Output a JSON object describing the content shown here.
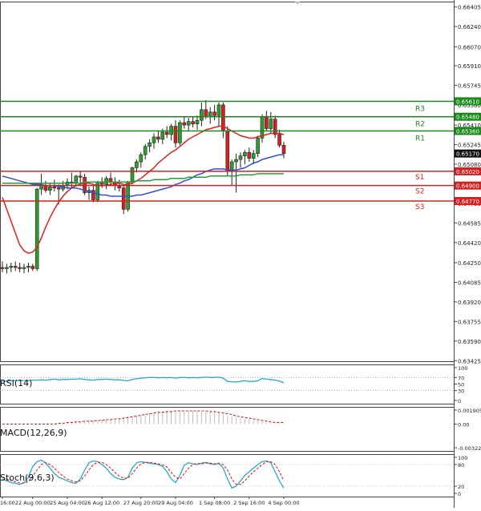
{
  "chart_data": {
    "type": "candlestick",
    "instrument_note": "Forex chart with support/resistance levels and indicators",
    "price_axis": {
      "ylim": [
        0.6342,
        0.6645
      ],
      "ticks": [
        "0.66405",
        "0.66240",
        "0.66070",
        "0.65910",
        "0.65745",
        "0.65580",
        "0.65410",
        "0.65245",
        "0.65080",
        "0.64915",
        "0.64750",
        "0.64585",
        "0.64420",
        "0.64250",
        "0.64085",
        "0.63920",
        "0.63755",
        "0.63590",
        "0.63425"
      ]
    },
    "levels": [
      {
        "name": "R3",
        "label": "0.65610",
        "value": 0.6561,
        "color": "#1a8a1a"
      },
      {
        "name": "R2",
        "label": "0.65480",
        "value": 0.6548,
        "color": "#1a8a1a"
      },
      {
        "name": "R1",
        "label": "0.65360",
        "value": 0.6536,
        "color": "#1a8a1a"
      },
      {
        "name": "S1",
        "label": "0.65020",
        "value": 0.6502,
        "color": "#d42020"
      },
      {
        "name": "S2",
        "label": "0.64900",
        "value": 0.649,
        "color": "#d42020"
      },
      {
        "name": "S3",
        "label": "0.64770",
        "value": 0.6477,
        "color": "#d42020"
      }
    ],
    "current_price": {
      "label": "0.65170",
      "value": 0.6517
    },
    "candles": [
      {
        "o": 0.6421,
        "h": 0.6426,
        "l": 0.6417,
        "c": 0.642
      },
      {
        "o": 0.642,
        "h": 0.6424,
        "l": 0.6416,
        "c": 0.6421
      },
      {
        "o": 0.6421,
        "h": 0.6425,
        "l": 0.6417,
        "c": 0.6422
      },
      {
        "o": 0.6422,
        "h": 0.6426,
        "l": 0.6418,
        "c": 0.6421
      },
      {
        "o": 0.6421,
        "h": 0.6425,
        "l": 0.6417,
        "c": 0.642
      },
      {
        "o": 0.642,
        "h": 0.6424,
        "l": 0.6416,
        "c": 0.6421
      },
      {
        "o": 0.6421,
        "h": 0.6425,
        "l": 0.6417,
        "c": 0.6422
      },
      {
        "o": 0.6422,
        "h": 0.6424,
        "l": 0.6418,
        "c": 0.642
      },
      {
        "o": 0.642,
        "h": 0.6488,
        "l": 0.6418,
        "c": 0.6487
      },
      {
        "o": 0.6487,
        "h": 0.65,
        "l": 0.6482,
        "c": 0.649
      },
      {
        "o": 0.649,
        "h": 0.6494,
        "l": 0.6484,
        "c": 0.6486
      },
      {
        "o": 0.6486,
        "h": 0.6492,
        "l": 0.6482,
        "c": 0.6489
      },
      {
        "o": 0.6489,
        "h": 0.6495,
        "l": 0.6485,
        "c": 0.6488
      },
      {
        "o": 0.6488,
        "h": 0.6491,
        "l": 0.6474,
        "c": 0.6487
      },
      {
        "o": 0.6487,
        "h": 0.6494,
        "l": 0.6485,
        "c": 0.649
      },
      {
        "o": 0.649,
        "h": 0.6496,
        "l": 0.6487,
        "c": 0.6493
      },
      {
        "o": 0.6493,
        "h": 0.6501,
        "l": 0.6488,
        "c": 0.6492
      },
      {
        "o": 0.6492,
        "h": 0.6499,
        "l": 0.6489,
        "c": 0.6498
      },
      {
        "o": 0.6498,
        "h": 0.6502,
        "l": 0.6492,
        "c": 0.6497
      },
      {
        "o": 0.6497,
        "h": 0.65,
        "l": 0.6482,
        "c": 0.6484
      },
      {
        "o": 0.6484,
        "h": 0.6489,
        "l": 0.6478,
        "c": 0.6486
      },
      {
        "o": 0.6486,
        "h": 0.649,
        "l": 0.6476,
        "c": 0.6478
      },
      {
        "o": 0.6478,
        "h": 0.6494,
        "l": 0.6476,
        "c": 0.6493
      },
      {
        "o": 0.6493,
        "h": 0.6497,
        "l": 0.6488,
        "c": 0.6491
      },
      {
        "o": 0.6491,
        "h": 0.6498,
        "l": 0.6487,
        "c": 0.6496
      },
      {
        "o": 0.6496,
        "h": 0.6501,
        "l": 0.649,
        "c": 0.6493
      },
      {
        "o": 0.6493,
        "h": 0.6497,
        "l": 0.6486,
        "c": 0.649
      },
      {
        "o": 0.649,
        "h": 0.6495,
        "l": 0.6485,
        "c": 0.6488
      },
      {
        "o": 0.6488,
        "h": 0.649,
        "l": 0.6466,
        "c": 0.647
      },
      {
        "o": 0.647,
        "h": 0.6494,
        "l": 0.6468,
        "c": 0.6493
      },
      {
        "o": 0.6493,
        "h": 0.6506,
        "l": 0.6491,
        "c": 0.6505
      },
      {
        "o": 0.6505,
        "h": 0.6512,
        "l": 0.6501,
        "c": 0.651
      },
      {
        "o": 0.651,
        "h": 0.6518,
        "l": 0.6505,
        "c": 0.6516
      },
      {
        "o": 0.6516,
        "h": 0.6525,
        "l": 0.6512,
        "c": 0.6523
      },
      {
        "o": 0.6523,
        "h": 0.6529,
        "l": 0.6518,
        "c": 0.6526
      },
      {
        "o": 0.6526,
        "h": 0.6534,
        "l": 0.6521,
        "c": 0.6531
      },
      {
        "o": 0.6531,
        "h": 0.6536,
        "l": 0.6526,
        "c": 0.6529
      },
      {
        "o": 0.6529,
        "h": 0.6538,
        "l": 0.6525,
        "c": 0.6535
      },
      {
        "o": 0.6535,
        "h": 0.654,
        "l": 0.653,
        "c": 0.6533
      },
      {
        "o": 0.6533,
        "h": 0.6542,
        "l": 0.6528,
        "c": 0.654
      },
      {
        "o": 0.654,
        "h": 0.6545,
        "l": 0.6522,
        "c": 0.6526
      },
      {
        "o": 0.6526,
        "h": 0.6545,
        "l": 0.6524,
        "c": 0.6543
      },
      {
        "o": 0.6543,
        "h": 0.6548,
        "l": 0.6538,
        "c": 0.6541
      },
      {
        "o": 0.6541,
        "h": 0.6547,
        "l": 0.6536,
        "c": 0.6544
      },
      {
        "o": 0.6544,
        "h": 0.6548,
        "l": 0.6539,
        "c": 0.6542
      },
      {
        "o": 0.6542,
        "h": 0.6549,
        "l": 0.6537,
        "c": 0.6545
      },
      {
        "o": 0.6545,
        "h": 0.656,
        "l": 0.654,
        "c": 0.6554
      },
      {
        "o": 0.6554,
        "h": 0.6562,
        "l": 0.6546,
        "c": 0.6548
      },
      {
        "o": 0.6548,
        "h": 0.6556,
        "l": 0.6542,
        "c": 0.6552
      },
      {
        "o": 0.6552,
        "h": 0.6558,
        "l": 0.6545,
        "c": 0.6549
      },
      {
        "o": 0.6549,
        "h": 0.656,
        "l": 0.654,
        "c": 0.6558
      },
      {
        "o": 0.6558,
        "h": 0.656,
        "l": 0.653,
        "c": 0.6536
      },
      {
        "o": 0.6536,
        "h": 0.654,
        "l": 0.6498,
        "c": 0.6502
      },
      {
        "o": 0.6502,
        "h": 0.6512,
        "l": 0.649,
        "c": 0.651
      },
      {
        "o": 0.651,
        "h": 0.6517,
        "l": 0.6484,
        "c": 0.6512
      },
      {
        "o": 0.6512,
        "h": 0.6518,
        "l": 0.6505,
        "c": 0.6515
      },
      {
        "o": 0.6515,
        "h": 0.652,
        "l": 0.6508,
        "c": 0.6518
      },
      {
        "o": 0.6518,
        "h": 0.6522,
        "l": 0.651,
        "c": 0.6513
      },
      {
        "o": 0.6513,
        "h": 0.652,
        "l": 0.6508,
        "c": 0.6517
      },
      {
        "o": 0.6517,
        "h": 0.6532,
        "l": 0.6514,
        "c": 0.653
      },
      {
        "o": 0.653,
        "h": 0.655,
        "l": 0.6526,
        "c": 0.6548
      },
      {
        "o": 0.6548,
        "h": 0.6553,
        "l": 0.6536,
        "c": 0.6538
      },
      {
        "o": 0.6538,
        "h": 0.6552,
        "l": 0.6534,
        "c": 0.6546
      },
      {
        "o": 0.6546,
        "h": 0.6549,
        "l": 0.653,
        "c": 0.6533
      },
      {
        "o": 0.6533,
        "h": 0.6537,
        "l": 0.6522,
        "c": 0.6524
      },
      {
        "o": 0.6524,
        "h": 0.6527,
        "l": 0.6513,
        "c": 0.6517
      }
    ],
    "moving_averages": [
      {
        "name": "ma-red",
        "color": "#e02020",
        "values": [
          0.648,
          0.647,
          0.646,
          0.645,
          0.644,
          0.6435,
          0.6433,
          0.6434,
          0.6438,
          0.6446,
          0.6455,
          0.6463,
          0.647,
          0.6476,
          0.6481,
          0.6485,
          0.6488,
          0.649,
          0.6491,
          0.6492,
          0.6492,
          0.6491,
          0.649,
          0.649,
          0.649,
          0.6491,
          0.6492,
          0.6492,
          0.6491,
          0.6491,
          0.6492,
          0.6494,
          0.6496,
          0.6499,
          0.6502,
          0.6505,
          0.6509,
          0.6512,
          0.6515,
          0.6518,
          0.652,
          0.6523,
          0.6526,
          0.6529,
          0.6531,
          0.6533,
          0.6535,
          0.6537,
          0.6538,
          0.6539,
          0.654,
          0.654,
          0.6538,
          0.6536,
          0.6534,
          0.6532,
          0.6531,
          0.653,
          0.653,
          0.6531,
          0.6532,
          0.6533,
          0.6534,
          0.6534,
          0.6534,
          0.6533
        ]
      },
      {
        "name": "ma-blue",
        "color": "#3050d0",
        "values": [
          0.6498,
          0.6497,
          0.6496,
          0.6495,
          0.6494,
          0.6493,
          0.6492,
          0.6491,
          0.6491,
          0.6491,
          0.649,
          0.649,
          0.649,
          0.6489,
          0.6489,
          0.6488,
          0.6488,
          0.6488,
          0.6487,
          0.6486,
          0.6485,
          0.6484,
          0.6483,
          0.6482,
          0.6482,
          0.6481,
          0.6481,
          0.6481,
          0.6481,
          0.6481,
          0.6481,
          0.6482,
          0.6482,
          0.6483,
          0.6484,
          0.6485,
          0.6486,
          0.6487,
          0.6488,
          0.6489,
          0.6491,
          0.6492,
          0.6494,
          0.6495,
          0.6497,
          0.6499,
          0.65,
          0.6502,
          0.6503,
          0.6504,
          0.6504,
          0.6504,
          0.6503,
          0.6503,
          0.6503,
          0.6504,
          0.6505,
          0.6507,
          0.6509,
          0.651,
          0.6512,
          0.6513,
          0.6514,
          0.6515,
          0.6516,
          0.6516
        ]
      },
      {
        "name": "ma-green",
        "color": "#20a040",
        "values": [
          0.6492,
          0.6492,
          0.6492,
          0.6492,
          0.6492,
          0.6492,
          0.6492,
          0.6492,
          0.6492,
          0.6492,
          0.6492,
          0.6492,
          0.6492,
          0.6492,
          0.6492,
          0.6492,
          0.6492,
          0.6492,
          0.6492,
          0.6493,
          0.6493,
          0.6493,
          0.6493,
          0.6493,
          0.6493,
          0.6493,
          0.6493,
          0.6493,
          0.6493,
          0.6493,
          0.6493,
          0.6494,
          0.6494,
          0.6494,
          0.6494,
          0.6495,
          0.6495,
          0.6495,
          0.6495,
          0.6496,
          0.6496,
          0.6496,
          0.6496,
          0.6497,
          0.6497,
          0.6497,
          0.6497,
          0.6497,
          0.6498,
          0.6498,
          0.6498,
          0.6498,
          0.6498,
          0.6498,
          0.6498,
          0.6499,
          0.6499,
          0.6499,
          0.6499,
          0.65,
          0.65,
          0.65,
          0.65,
          0.65,
          0.65,
          0.65
        ]
      }
    ],
    "x_tick_labels": [
      "16:00",
      "22 Aug 00:00",
      "25 Aug 04:00",
      "26 Aug 12:00",
      "27 Aug 20:00",
      "29 Aug 04:00",
      "1 Sep 08:00",
      "2 Sep 16:00",
      "4 Sep 00:00"
    ],
    "x_tick_index": [
      0,
      7,
      15,
      23,
      32,
      40,
      49,
      57,
      65
    ],
    "rsi": {
      "title": "RSI(14)",
      "ticks": [
        "100",
        "70",
        "50",
        "30",
        "0"
      ],
      "tick_values": [
        100,
        70,
        50,
        30,
        0
      ],
      "values": [
        58,
        59,
        60,
        60,
        61,
        61,
        60,
        62,
        62,
        63,
        62,
        64,
        65,
        63,
        64,
        64,
        65,
        65,
        66,
        64,
        63,
        62,
        64,
        64,
        65,
        64,
        63,
        63,
        61,
        60,
        64,
        66,
        68,
        69,
        70,
        70,
        69,
        70,
        69,
        70,
        68,
        70,
        70,
        69,
        70,
        69,
        70,
        71,
        70,
        70,
        71,
        68,
        58,
        57,
        56,
        58,
        60,
        58,
        58,
        60,
        67,
        65,
        64,
        62,
        59,
        54
      ]
    },
    "macd": {
      "title": "MACD(12,26,9)",
      "ticks": [
        "0.001905",
        "0.00",
        "-0.003223"
      ],
      "tick_values": [
        0.001905,
        0.0,
        -0.003223
      ],
      "histogram": [
        0,
        0,
        0,
        0,
        0,
        0,
        0,
        0,
        0,
        0,
        0,
        0,
        0,
        0.0001,
        0.0002,
        0.0002,
        0.0003,
        0.0003,
        0.0004,
        0.0004,
        0.0004,
        0.0005,
        0.0005,
        0.0006,
        0.0006,
        0.0007,
        0.0007,
        0.0008,
        0.0009,
        0.001,
        0.0011,
        0.0012,
        0.0013,
        0.0014,
        0.0015,
        0.0016,
        0.0017,
        0.0017,
        0.0018,
        0.0018,
        0.0018,
        0.0018,
        0.0018,
        0.0018,
        0.0018,
        0.0018,
        0.0017,
        0.0017,
        0.0016,
        0.0016,
        0.0015,
        0.0013,
        0.0011,
        0.001,
        0.0009,
        0.0008,
        0.0007,
        0.0006,
        0.0005,
        0.0004,
        0.0003,
        0.0002,
        0.0001,
        0.0001,
        0.0001,
        0.0001
      ],
      "signal": [
        0,
        0,
        0,
        0,
        0,
        0,
        0,
        0,
        0,
        0,
        0,
        0,
        0,
        0.0001,
        0.0001,
        0.0002,
        0.0002,
        0.0003,
        0.0003,
        0.0004,
        0.0004,
        0.0004,
        0.0005,
        0.0005,
        0.0006,
        0.0006,
        0.0007,
        0.0007,
        0.0008,
        0.0009,
        0.001,
        0.0011,
        0.0012,
        0.0013,
        0.0014,
        0.0015,
        0.0016,
        0.0016,
        0.0017,
        0.0017,
        0.0018,
        0.0018,
        0.0018,
        0.0018,
        0.0018,
        0.0018,
        0.0018,
        0.0018,
        0.0017,
        0.0017,
        0.0016,
        0.0015,
        0.0014,
        0.0013,
        0.0011,
        0.001,
        0.0009,
        0.0008,
        0.0007,
        0.0006,
        0.0005,
        0.0004,
        0.0003,
        0.0002,
        0.0002,
        0.0002
      ]
    },
    "stoch": {
      "title": "Stoch(9,6,3)",
      "ticks": [
        "100",
        "80",
        "20",
        "0"
      ],
      "tick_values": [
        100,
        80,
        20,
        0
      ],
      "k": [
        40,
        35,
        30,
        28,
        25,
        30,
        45,
        75,
        88,
        92,
        85,
        70,
        55,
        45,
        40,
        35,
        30,
        28,
        40,
        65,
        85,
        90,
        88,
        80,
        70,
        55,
        45,
        40,
        38,
        45,
        70,
        85,
        88,
        86,
        84,
        82,
        80,
        75,
        60,
        40,
        30,
        50,
        78,
        85,
        82,
        80,
        84,
        86,
        82,
        80,
        84,
        70,
        40,
        15,
        20,
        35,
        50,
        60,
        70,
        80,
        88,
        90,
        85,
        60,
        35,
        15
      ],
      "d": [
        45,
        40,
        36,
        32,
        29,
        28,
        33,
        48,
        65,
        80,
        85,
        80,
        70,
        58,
        48,
        40,
        35,
        32,
        35,
        48,
        65,
        80,
        86,
        86,
        80,
        70,
        58,
        48,
        42,
        42,
        55,
        70,
        82,
        86,
        86,
        84,
        82,
        79,
        73,
        58,
        45,
        40,
        55,
        70,
        80,
        83,
        82,
        84,
        84,
        82,
        82,
        80,
        65,
        40,
        25,
        25,
        35,
        48,
        60,
        70,
        80,
        88,
        88,
        80,
        60,
        35
      ]
    }
  }
}
